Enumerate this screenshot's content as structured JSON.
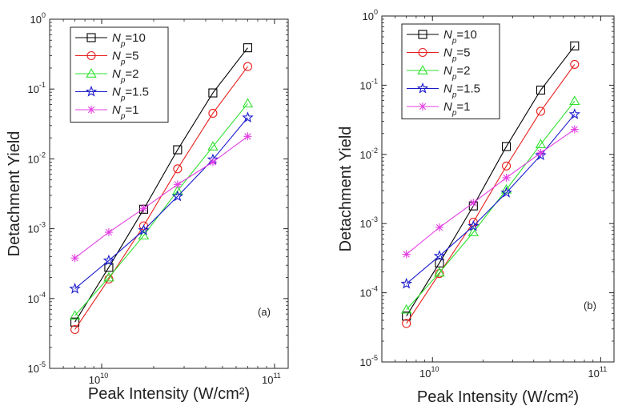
{
  "chart_data": [
    {
      "type": "line",
      "panel_label": "(a)",
      "xlabel": "Peak Intensity (W/cm²)",
      "ylabel": "Detachment Yield",
      "x_scale": "log",
      "y_scale": "log",
      "xlim": [
        5000000000.0,
        120000000000.0
      ],
      "ylim": [
        1e-05,
        1
      ],
      "x_ticks": [
        {
          "v": 10000000000.0,
          "base": "10",
          "exp": "10"
        },
        {
          "v": 100000000000.0,
          "base": "10",
          "exp": "11"
        }
      ],
      "y_ticks": [
        {
          "v": 1,
          "base": "10",
          "exp": "0"
        },
        {
          "v": 0.1,
          "base": "10",
          "exp": "-1"
        },
        {
          "v": 0.01,
          "base": "10",
          "exp": "-2"
        },
        {
          "v": 0.001,
          "base": "10",
          "exp": "-3"
        },
        {
          "v": 0.0001,
          "base": "10",
          "exp": "-4"
        },
        {
          "v": 1e-05,
          "base": "10",
          "exp": "-5"
        }
      ],
      "grid": false,
      "legend_position": "top-left",
      "x": [
        7000000000.0,
        11000000000.0,
        17500000000.0,
        27500000000.0,
        44000000000.0,
        70000000000.0
      ],
      "series": [
        {
          "name": "N",
          "sub": "p",
          "rest": "=10",
          "color": "#000000",
          "marker": "square",
          "values": [
            4.6e-05,
            0.00028,
            0.0019,
            0.0135,
            0.088,
            0.39
          ]
        },
        {
          "name": "N",
          "sub": "p",
          "rest": "=5",
          "color": "#e8201e",
          "marker": "circle",
          "values": [
            3.6e-05,
            0.00019,
            0.0011,
            0.0072,
            0.045,
            0.21
          ]
        },
        {
          "name": "N",
          "sub": "p",
          "rest": "=2",
          "color": "#2ee02e",
          "marker": "triangle",
          "values": [
            5.7e-05,
            0.0002,
            0.0008,
            0.0035,
            0.015,
            0.062
          ]
        },
        {
          "name": "N",
          "sub": "p",
          "rest": "=1.5",
          "color": "#1a1acc",
          "marker": "star",
          "values": [
            0.000138,
            0.00035,
            0.00095,
            0.0029,
            0.0098,
            0.039
          ]
        },
        {
          "name": "N",
          "sub": "p",
          "rest": "=1",
          "color": "#e43fe4",
          "marker": "asterisk",
          "values": [
            0.00038,
            0.00089,
            0.00195,
            0.0043,
            0.009,
            0.021
          ]
        }
      ]
    },
    {
      "type": "line",
      "panel_label": "(b)",
      "xlabel": "Peak Intensity (W/cm²)",
      "ylabel": "Detachment Yield",
      "x_scale": "log",
      "y_scale": "log",
      "xlim": [
        5000000000.0,
        120000000000.0
      ],
      "ylim": [
        1e-05,
        1
      ],
      "x_ticks": [
        {
          "v": 10000000000.0,
          "base": "10",
          "exp": "10"
        },
        {
          "v": 100000000000.0,
          "base": "10",
          "exp": "11"
        }
      ],
      "y_ticks": [
        {
          "v": 1,
          "base": "10",
          "exp": "0"
        },
        {
          "v": 0.1,
          "base": "10",
          "exp": "-1"
        },
        {
          "v": 0.01,
          "base": "10",
          "exp": "-2"
        },
        {
          "v": 0.001,
          "base": "10",
          "exp": "-3"
        },
        {
          "v": 0.0001,
          "base": "10",
          "exp": "-4"
        },
        {
          "v": 1e-05,
          "base": "10",
          "exp": "-5"
        }
      ],
      "grid": false,
      "legend_position": "top-left",
      "x": [
        7000000000.0,
        11000000000.0,
        17500000000.0,
        27500000000.0,
        44000000000.0,
        70000000000.0
      ],
      "series": [
        {
          "name": "N",
          "sub": "p",
          "rest": "=10",
          "color": "#000000",
          "marker": "square",
          "values": [
            4.6e-05,
            0.00027,
            0.0018,
            0.013,
            0.085,
            0.37
          ]
        },
        {
          "name": "N",
          "sub": "p",
          "rest": "=5",
          "color": "#e8201e",
          "marker": "circle",
          "values": [
            3.6e-05,
            0.00019,
            0.00105,
            0.0068,
            0.042,
            0.2
          ]
        },
        {
          "name": "N",
          "sub": "p",
          "rest": "=2",
          "color": "#2ee02e",
          "marker": "triangle",
          "values": [
            5.7e-05,
            0.000195,
            0.00075,
            0.0031,
            0.014,
            0.059
          ]
        },
        {
          "name": "N",
          "sub": "p",
          "rest": "=1.5",
          "color": "#1a1acc",
          "marker": "star",
          "values": [
            0.000135,
            0.00034,
            0.00092,
            0.0028,
            0.0097,
            0.038
          ]
        },
        {
          "name": "N",
          "sub": "p",
          "rest": "=1",
          "color": "#e43fe4",
          "marker": "asterisk",
          "values": [
            0.00036,
            0.00088,
            0.002,
            0.0046,
            0.0105,
            0.023
          ]
        }
      ]
    }
  ]
}
